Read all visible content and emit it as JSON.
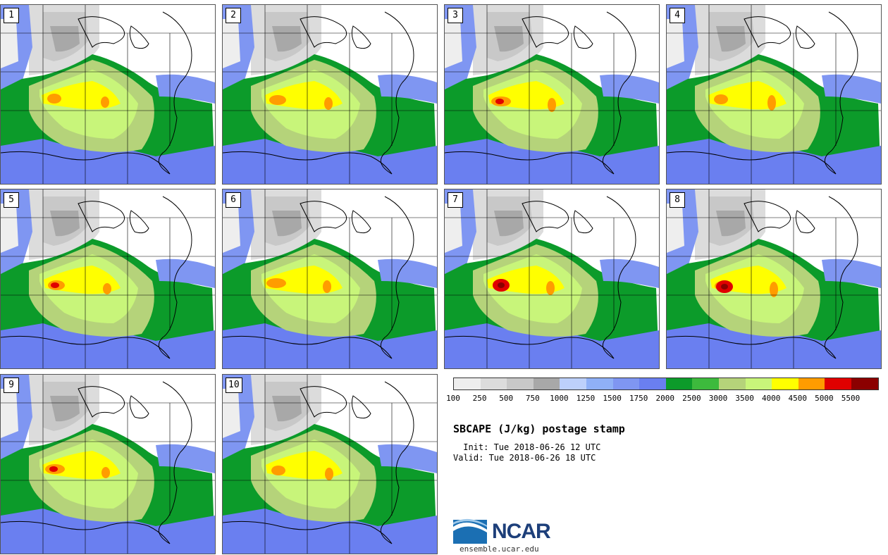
{
  "title": "SBCAPE (J/kg) postage stamp",
  "init": " Init: Tue 2018-06-26 12 UTC",
  "valid": "Valid: Tue 2018-06-26 18 UTC",
  "members": [
    "1",
    "2",
    "3",
    "4",
    "5",
    "6",
    "7",
    "8",
    "9",
    "10"
  ],
  "colorbar": {
    "colors": [
      "#eeeeee",
      "#dcdcdc",
      "#c8c8c8",
      "#a8a8a8",
      "#bdd0fb",
      "#8fb0f7",
      "#7f96f2",
      "#6a7ff0",
      "#0c9b2a",
      "#3dba3d",
      "#b5d37a",
      "#c8f57a",
      "#ffff00",
      "#ff9c00",
      "#e00000",
      "#8b0000"
    ],
    "ticks": [
      "100",
      "250",
      "500",
      "750",
      "1000",
      "1250",
      "1500",
      "1750",
      "2000",
      "2500",
      "3000",
      "3500",
      "4000",
      "4500",
      "5000",
      "5500"
    ]
  },
  "logo": {
    "name": "NCAR",
    "url": "ensemble.ucar.edu"
  }
}
